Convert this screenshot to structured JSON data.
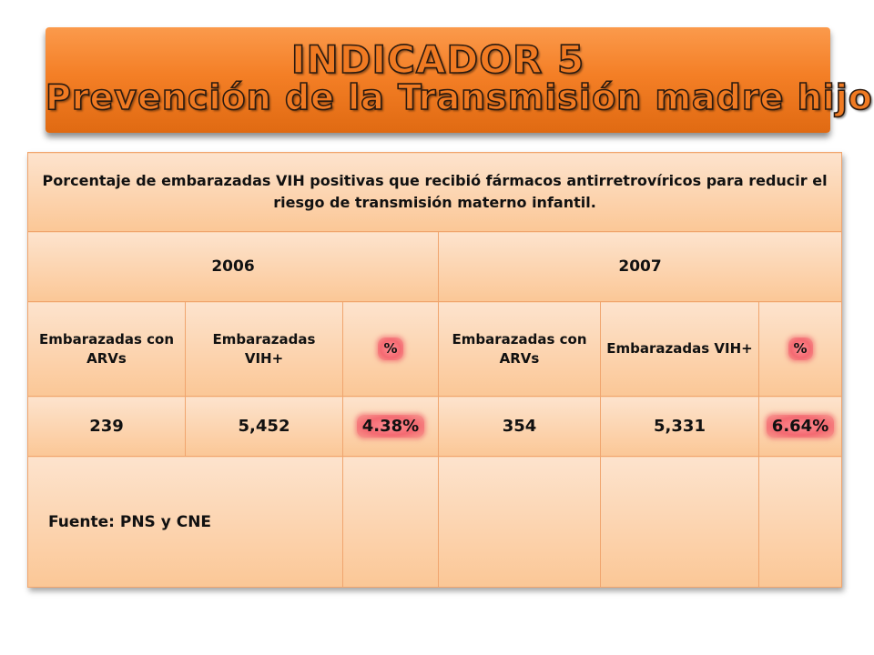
{
  "title": {
    "line1": "INDICADOR 5",
    "line2": "Prevención de la Transmisión madre hijo"
  },
  "table": {
    "description": "Porcentaje de embarazadas VIH positivas que recibió fármacos antirretrovíricos para reducir el riesgo de transmisión materno infantil.",
    "years": [
      "2006",
      "2007"
    ],
    "headers": {
      "y2006": [
        "Embarazadas con ARVs",
        "Embarazadas VIH+",
        "%"
      ],
      "y2007": [
        "Embarazadas con ARVs",
        "Embarazadas VIH+",
        "%"
      ]
    },
    "values": {
      "y2006": [
        "239",
        "5,452",
        "4.38%"
      ],
      "y2007": [
        "354",
        "5,331",
        "6.64%"
      ]
    },
    "source": "Fuente: PNS y CNE"
  },
  "colors": {
    "banner": "#f47f26",
    "cell": "#fbc796",
    "highlight": "#f46a72"
  }
}
